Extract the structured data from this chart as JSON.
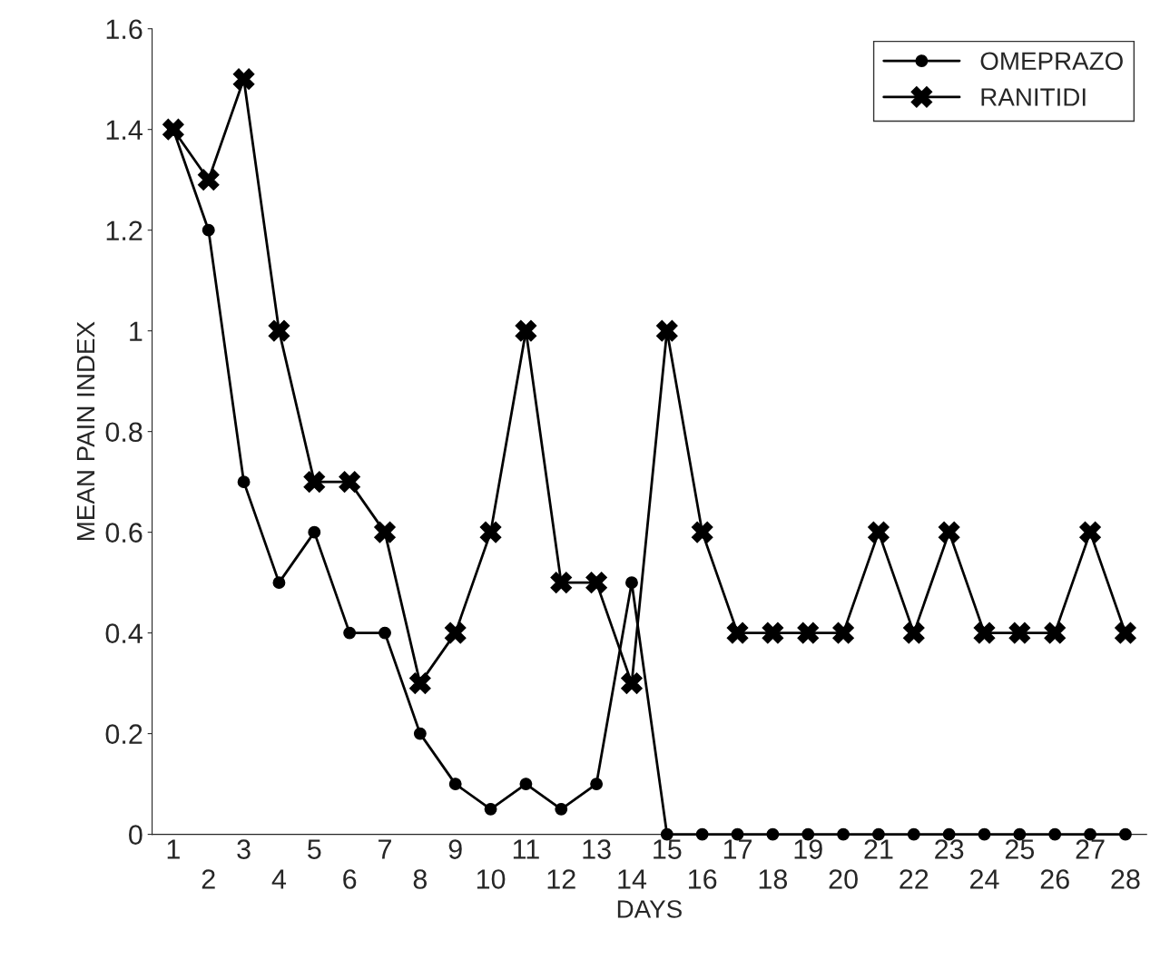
{
  "chart_data": {
    "type": "line",
    "xlabel": "DAYS",
    "ylabel": "MEAN PAIN INDEX",
    "categories": [
      "1",
      "2",
      "3",
      "4",
      "5",
      "6",
      "7",
      "8",
      "9",
      "10",
      "11",
      "12",
      "13",
      "14",
      "15",
      "16",
      "17",
      "18",
      "19",
      "20",
      "21",
      "22",
      "23",
      "24",
      "25",
      "26",
      "27",
      "28"
    ],
    "series": [
      {
        "name": "OMEPRAZO",
        "color": "#000000",
        "marker": "circle",
        "values": [
          1.4,
          1.2,
          0.7,
          0.5,
          0.6,
          0.4,
          0.4,
          0.2,
          0.1,
          0.05,
          0.1,
          0.05,
          0.1,
          0.5,
          0,
          0,
          0,
          0,
          0,
          0,
          0,
          0,
          0,
          0,
          0,
          0,
          0,
          0
        ]
      },
      {
        "name": "RANITIDI",
        "color": "#000000",
        "marker": "cross",
        "values": [
          1.4,
          1.3,
          1.5,
          1.0,
          0.7,
          0.7,
          0.6,
          0.3,
          0.4,
          0.6,
          1.0,
          0.5,
          0.5,
          0.3,
          1.0,
          0.6,
          0.4,
          0.4,
          0.4,
          0.4,
          0.6,
          0.4,
          0.6,
          0.4,
          0.4,
          0.4,
          0.6,
          0.4
        ]
      }
    ],
    "ylim": [
      0,
      1.6
    ],
    "yticks": [
      {
        "value": 0,
        "label": "0"
      },
      0.2,
      0.4,
      0.6,
      0.8,
      {
        "value": 1,
        "label": "1"
      },
      1.2,
      1.4,
      1.6
    ],
    "grid": false,
    "legend": "top right",
    "line_style": "solid"
  }
}
